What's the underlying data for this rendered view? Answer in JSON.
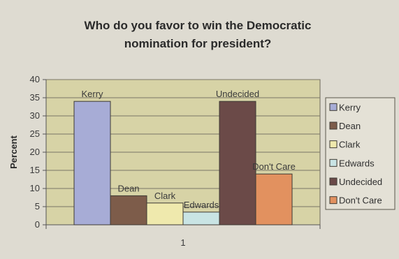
{
  "chart_data": {
    "type": "bar",
    "title": "Who do you favor to win the Democratic nomination for president?",
    "title_lines": [
      "Who do you favor to win the Democratic",
      "nomination for president?"
    ],
    "ylabel": "Percent",
    "xlabel": "",
    "categories": [
      "1"
    ],
    "ylim": [
      0,
      40
    ],
    "yticks": [
      0,
      5,
      10,
      15,
      20,
      25,
      30,
      35,
      40
    ],
    "grid": true,
    "legend_position": "right",
    "series": [
      {
        "name": "Kerry",
        "values": [
          34
        ],
        "color": "#a7acd6",
        "label": "Kerry"
      },
      {
        "name": "Dean",
        "values": [
          8
        ],
        "color": "#7d5c4a",
        "label": "Dean"
      },
      {
        "name": "Clark",
        "values": [
          6
        ],
        "color": "#efe9ad",
        "label": "Clark"
      },
      {
        "name": "Edwards",
        "values": [
          3.5
        ],
        "color": "#c9e4e4",
        "label": "Edwards"
      },
      {
        "name": "Undecided",
        "values": [
          34
        ],
        "color": "#6b4a48",
        "label": "Undecided"
      },
      {
        "name": "Don't Care",
        "values": [
          14
        ],
        "color": "#e2915f",
        "label": "Don't Care"
      }
    ],
    "plot_background": "#d7d3a6"
  }
}
